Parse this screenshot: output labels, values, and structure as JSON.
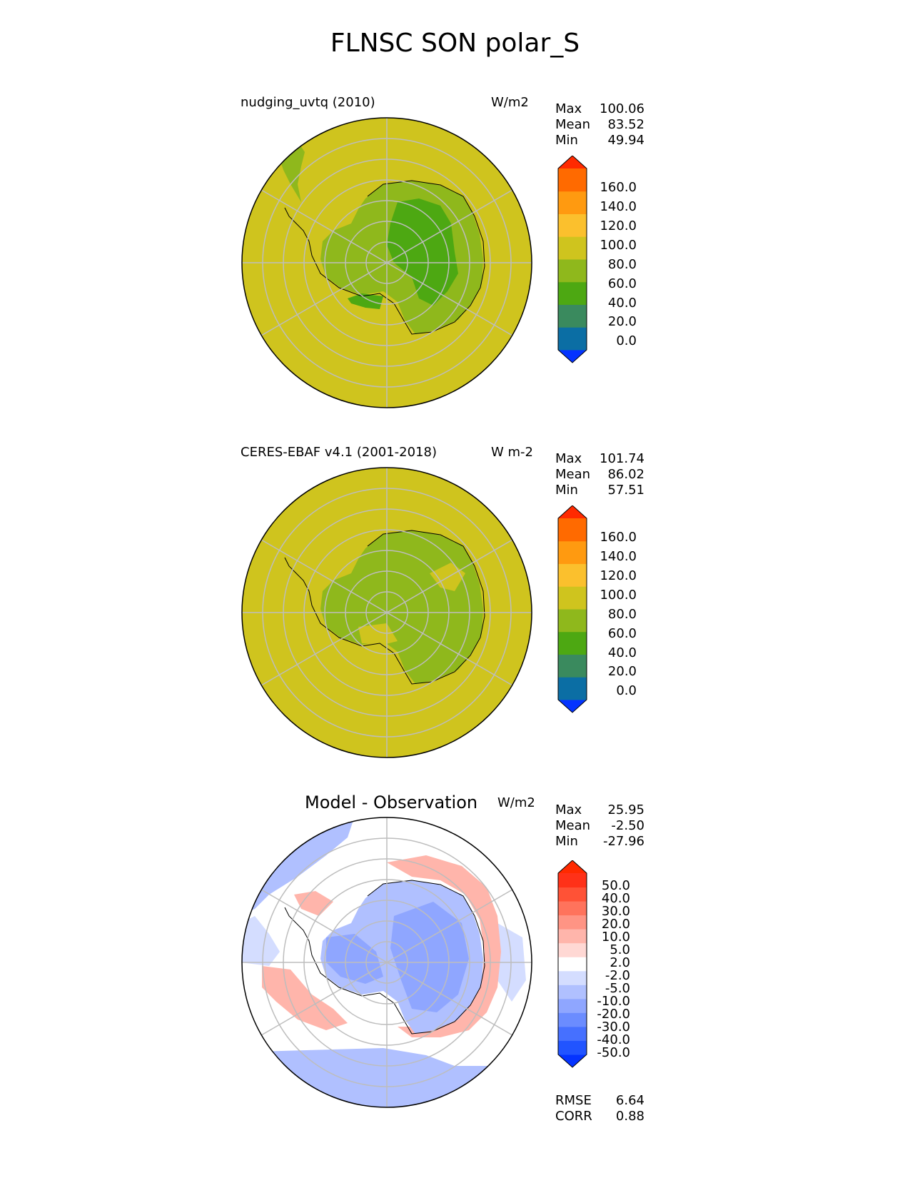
{
  "title": "FLNSC SON polar_S",
  "panels": [
    {
      "left_title": "nudging_uvtq (2010)",
      "units": "W/m2",
      "stats": [
        {
          "label": "Max",
          "value": "100.06"
        },
        {
          "label": "Mean",
          "value": "83.52"
        },
        {
          "label": "Min",
          "value": "49.94"
        }
      ],
      "colorbar": {
        "ticks": [
          "160.0",
          "140.0",
          "120.0",
          "100.0",
          "80.0",
          "60.0",
          "40.0",
          "20.0",
          "0.0"
        ],
        "colors_bottom_to_top": [
          "#0433ff",
          "#0b6ea4",
          "#3a8a5e",
          "#4da812",
          "#8fb81c",
          "#cfc41e",
          "#fbc02d",
          "#ff9a10",
          "#ff6a00",
          "#ff2a00"
        ]
      }
    },
    {
      "left_title": "CERES-EBAF v4.1 (2001-2018)",
      "units": "W m-2",
      "stats": [
        {
          "label": "Max",
          "value": "101.74"
        },
        {
          "label": "Mean",
          "value": "86.02"
        },
        {
          "label": "Min",
          "value": "57.51"
        }
      ],
      "colorbar": {
        "ticks": [
          "160.0",
          "140.0",
          "120.0",
          "100.0",
          "80.0",
          "60.0",
          "40.0",
          "20.0",
          "0.0"
        ],
        "colors_bottom_to_top": [
          "#0433ff",
          "#0b6ea4",
          "#3a8a5e",
          "#4da812",
          "#8fb81c",
          "#cfc41e",
          "#fbc02d",
          "#ff9a10",
          "#ff6a00",
          "#ff2a00"
        ]
      }
    },
    {
      "center_title": "Model - Observation",
      "units": "W/m2",
      "stats": [
        {
          "label": "Max",
          "value": "25.95"
        },
        {
          "label": "Mean",
          "value": "-2.50"
        },
        {
          "label": "Min",
          "value": "-27.96"
        }
      ],
      "colorbar": {
        "ticks": [
          "50.0",
          "40.0",
          "30.0",
          "20.0",
          "10.0",
          "5.0",
          "2.0",
          "-2.0",
          "-5.0",
          "-10.0",
          "-20.0",
          "-30.0",
          "-40.0",
          "-50.0"
        ],
        "colors_bottom_to_top": [
          "#0433ff",
          "#2154ff",
          "#4670ff",
          "#6b8cff",
          "#8fa6ff",
          "#b0c0ff",
          "#d4ddff",
          "#ffffff",
          "#ffd8d4",
          "#ffb5ab",
          "#ff9484",
          "#ff735c",
          "#ff5236",
          "#ff3118",
          "#ff2a00"
        ]
      },
      "extra_stats": [
        {
          "label": "RMSE",
          "value": "6.64"
        },
        {
          "label": "CORR",
          "value": "0.88"
        }
      ]
    }
  ],
  "chart_data": {
    "type": "heatmap",
    "title": "FLNSC SON polar_S",
    "projection": "south polar stereographic",
    "maps": [
      {
        "name": "nudging_uvtq (2010)",
        "units": "W/m2",
        "max": 100.06,
        "mean": 83.52,
        "min": 49.94,
        "levels": [
          0,
          20,
          40,
          60,
          80,
          100,
          120,
          140,
          160
        ]
      },
      {
        "name": "CERES-EBAF v4.1 (2001-2018)",
        "units": "W m-2",
        "max": 101.74,
        "mean": 86.02,
        "min": 57.51,
        "levels": [
          0,
          20,
          40,
          60,
          80,
          100,
          120,
          140,
          160
        ]
      },
      {
        "name": "Model - Observation",
        "units": "W/m2",
        "max": 25.95,
        "mean": -2.5,
        "min": -27.96,
        "rmse": 6.64,
        "corr": 0.88,
        "levels": [
          -50,
          -40,
          -30,
          -20,
          -10,
          -5,
          -2,
          2,
          5,
          10,
          20,
          30,
          40,
          50
        ]
      }
    ]
  }
}
